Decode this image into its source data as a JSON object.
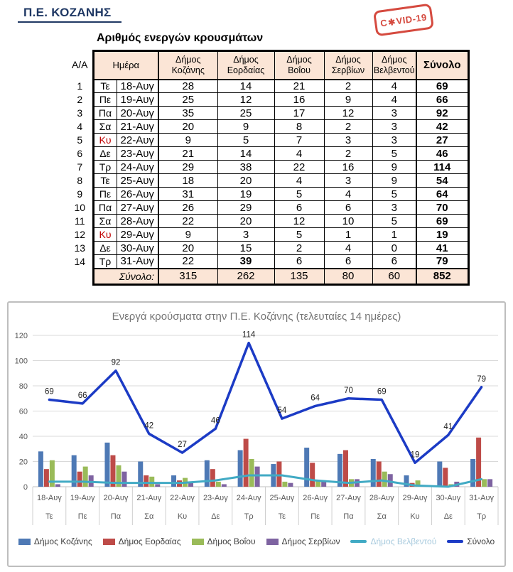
{
  "header": {
    "region_title": "Π.Ε. ΚΟΖΑΝΗΣ",
    "table_title": "Αριθμός ενεργών κρουσμάτων",
    "stamp_prefix": "C",
    "stamp_glyph": "✱",
    "stamp_suffix": "VID-19",
    "stamp_color": "#D23B2F"
  },
  "table": {
    "aa_header": "Α/Α",
    "day_header": "Ημέρα",
    "columns": [
      {
        "line1": "Δήμος",
        "line2": "Κοζάνης"
      },
      {
        "line1": "Δήμος",
        "line2": "Εορδαίας"
      },
      {
        "line1": "Δήμος",
        "line2": "Βοΐου"
      },
      {
        "line1": "Δήμος",
        "line2": "Σερβίων"
      },
      {
        "line1": "Δήμος",
        "line2": "Βελβεντού"
      }
    ],
    "total_header": "Σύνολο",
    "rows": [
      {
        "aa": "1",
        "dow": "Τε",
        "dow_red": false,
        "date": "18-Αυγ",
        "values": [
          28,
          14,
          21,
          2,
          4
        ],
        "total": 69,
        "bold": []
      },
      {
        "aa": "2",
        "dow": "Πε",
        "dow_red": false,
        "date": "19-Αυγ",
        "values": [
          25,
          12,
          16,
          9,
          4
        ],
        "total": 66,
        "bold": []
      },
      {
        "aa": "3",
        "dow": "Πα",
        "dow_red": false,
        "date": "20-Αυγ",
        "values": [
          35,
          25,
          17,
          12,
          3
        ],
        "total": 92,
        "bold": []
      },
      {
        "aa": "4",
        "dow": "Σα",
        "dow_red": false,
        "date": "21-Αυγ",
        "values": [
          20,
          9,
          8,
          2,
          3
        ],
        "total": 42,
        "bold": []
      },
      {
        "aa": "5",
        "dow": "Κυ",
        "dow_red": true,
        "date": "22-Αυγ",
        "values": [
          9,
          5,
          7,
          3,
          3
        ],
        "total": 27,
        "bold": []
      },
      {
        "aa": "6",
        "dow": "Δε",
        "dow_red": false,
        "date": "23-Αυγ",
        "values": [
          21,
          14,
          4,
          2,
          5
        ],
        "total": 46,
        "bold": []
      },
      {
        "aa": "7",
        "dow": "Τρ",
        "dow_red": false,
        "date": "24-Αυγ",
        "values": [
          29,
          38,
          22,
          16,
          9
        ],
        "total": 114,
        "bold": []
      },
      {
        "aa": "8",
        "dow": "Τε",
        "dow_red": false,
        "date": "25-Αυγ",
        "values": [
          18,
          20,
          4,
          3,
          9
        ],
        "total": 54,
        "bold": []
      },
      {
        "aa": "9",
        "dow": "Πε",
        "dow_red": false,
        "date": "26-Αυγ",
        "values": [
          31,
          19,
          5,
          4,
          5
        ],
        "total": 64,
        "bold": []
      },
      {
        "aa": "10",
        "dow": "Πα",
        "dow_red": false,
        "date": "27-Αυγ",
        "values": [
          26,
          29,
          6,
          6,
          3
        ],
        "total": 70,
        "bold": []
      },
      {
        "aa": "11",
        "dow": "Σα",
        "dow_red": false,
        "date": "28-Αυγ",
        "values": [
          22,
          20,
          12,
          10,
          5
        ],
        "total": 69,
        "bold": []
      },
      {
        "aa": "12",
        "dow": "Κυ",
        "dow_red": true,
        "date": "29-Αυγ",
        "values": [
          9,
          3,
          5,
          1,
          1
        ],
        "total": 19,
        "bold": []
      },
      {
        "aa": "13",
        "dow": "Δε",
        "dow_red": false,
        "date": "30-Αυγ",
        "values": [
          20,
          15,
          2,
          4,
          0
        ],
        "total": 41,
        "bold": []
      },
      {
        "aa": "14",
        "dow": "Τρ",
        "dow_red": false,
        "date": "31-Αυγ",
        "values": [
          22,
          39,
          6,
          6,
          6
        ],
        "total": 79,
        "bold": [
          1
        ]
      }
    ],
    "totals_row": {
      "label": "Σύνολο:",
      "values": [
        315,
        262,
        135,
        80,
        60
      ],
      "total": 852
    }
  },
  "chart_data": {
    "type": "bar",
    "subtype": "grouped bars with line overlays (combo)",
    "title": "Ενεργά κρούσματα στην Π.Ε. Κοζάνης (τελευταίες 14 ημέρες)",
    "categories": [
      "18-Αυγ",
      "19-Αυγ",
      "20-Αυγ",
      "21-Αυγ",
      "22-Αυγ",
      "23-Αυγ",
      "24-Αυγ",
      "25-Αυγ",
      "26-Αυγ",
      "27-Αυγ",
      "28-Αυγ",
      "29-Αυγ",
      "30-Αυγ",
      "31-Αυγ"
    ],
    "category_days": [
      "Τε",
      "Πε",
      "Πα",
      "Σα",
      "Κυ",
      "Δε",
      "Τρ",
      "Τε",
      "Πε",
      "Πα",
      "Σα",
      "Κυ",
      "Δε",
      "Τρ"
    ],
    "xlabel": "",
    "ylabel": "",
    "ylim": [
      0,
      120
    ],
    "yticks": [
      0,
      20,
      40,
      60,
      80,
      100,
      120
    ],
    "grid": true,
    "legend_position": "bottom",
    "series": [
      {
        "name": "Δήμος Κοζάνης",
        "type": "bar",
        "color": "#4E79B5",
        "values": [
          28,
          25,
          35,
          20,
          9,
          21,
          29,
          18,
          31,
          26,
          22,
          9,
          20,
          22
        ]
      },
      {
        "name": "Δήμος Εορδαίας",
        "type": "bar",
        "color": "#BE4B48",
        "values": [
          14,
          12,
          25,
          9,
          5,
          14,
          38,
          20,
          19,
          29,
          20,
          3,
          15,
          39
        ]
      },
      {
        "name": "Δήμος Βοΐου",
        "type": "bar",
        "color": "#9ABB59",
        "values": [
          21,
          16,
          17,
          8,
          7,
          4,
          22,
          4,
          5,
          6,
          12,
          5,
          2,
          6
        ]
      },
      {
        "name": "Δήμος Σερβίων",
        "type": "bar",
        "color": "#7E63A1",
        "values": [
          2,
          9,
          12,
          2,
          3,
          2,
          16,
          3,
          4,
          6,
          10,
          1,
          4,
          6
        ]
      },
      {
        "name": "Δήμος Βελβεντού",
        "type": "line",
        "color": "#41AAC4",
        "legend_text_color": "#A9CBDE",
        "values": [
          4,
          4,
          3,
          3,
          3,
          5,
          9,
          9,
          5,
          3,
          5,
          1,
          0,
          6
        ]
      },
      {
        "name": "Σύνολο",
        "type": "line",
        "color": "#1C3BC5",
        "data_labels": true,
        "values": [
          69,
          66,
          92,
          42,
          27,
          46,
          114,
          54,
          64,
          70,
          69,
          19,
          41,
          79
        ]
      }
    ],
    "colors": {
      "gridline": "#D9D9D9",
      "axis": "#BFBFBF",
      "tick_label": "#595959",
      "data_label": "#1F1F1F",
      "title": "#757575"
    }
  }
}
